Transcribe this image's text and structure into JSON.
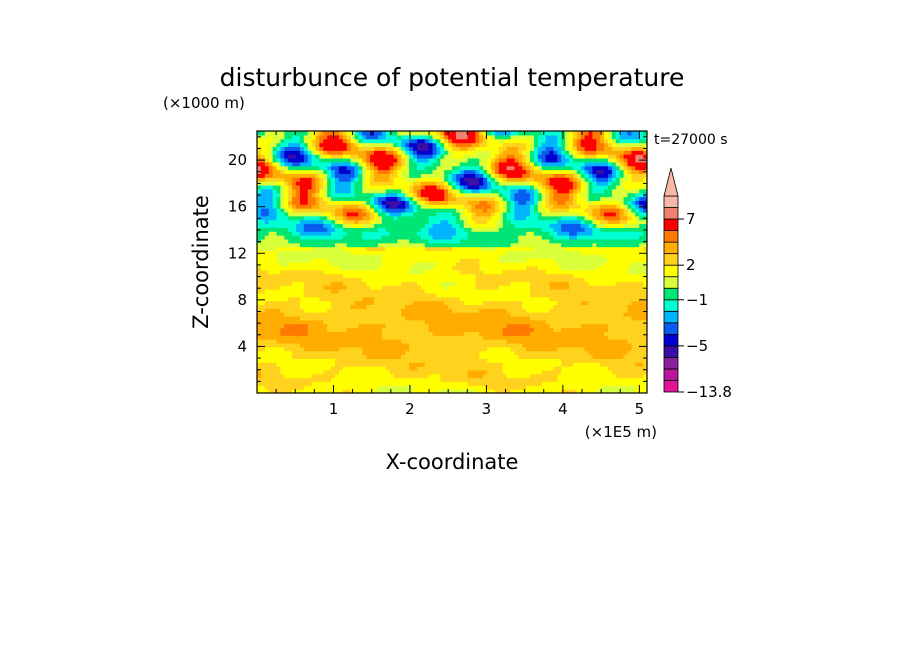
{
  "chart_data": {
    "type": "heatmap",
    "title": "disturbunce of potential temperature",
    "xlabel": "X-coordinate",
    "ylabel": "Z-coordinate",
    "x_unit": "(×1E5 m)",
    "y_unit": "(×1000 m)",
    "time_label": "t=27000 s",
    "xlim": [
      0,
      5.1
    ],
    "ylim": [
      0,
      22.5
    ],
    "x_ticks": [
      1,
      2,
      3,
      4,
      5
    ],
    "y_ticks": [
      4,
      8,
      12,
      16,
      20
    ],
    "colorbar": {
      "labels": [
        {
          "text": "7",
          "value": 7
        },
        {
          "text": "2",
          "value": 2
        },
        {
          "text": "−1",
          "value": -1
        },
        {
          "text": "−5",
          "value": -5
        },
        {
          "text": "−13.8",
          "value": -13.8
        }
      ],
      "levels": [
        -13.8,
        -11,
        -9,
        -7,
        -5,
        -4,
        -3,
        -2,
        -1,
        0,
        1,
        2,
        3,
        4,
        5,
        7,
        9
      ],
      "colors": [
        "#e5129a",
        "#b8189a",
        "#8a1fa0",
        "#3a0ea8",
        "#0000cf",
        "#0a5cf0",
        "#00b4ff",
        "#00ffd2",
        "#00e676",
        "#d9ff3b",
        "#ffff00",
        "#ffd21e",
        "#ffad00",
        "#ff7800",
        "#ff0000",
        "#f08070",
        "#f8b8a8"
      ],
      "extend": "max"
    },
    "grid": false,
    "legend_position": "right"
  }
}
